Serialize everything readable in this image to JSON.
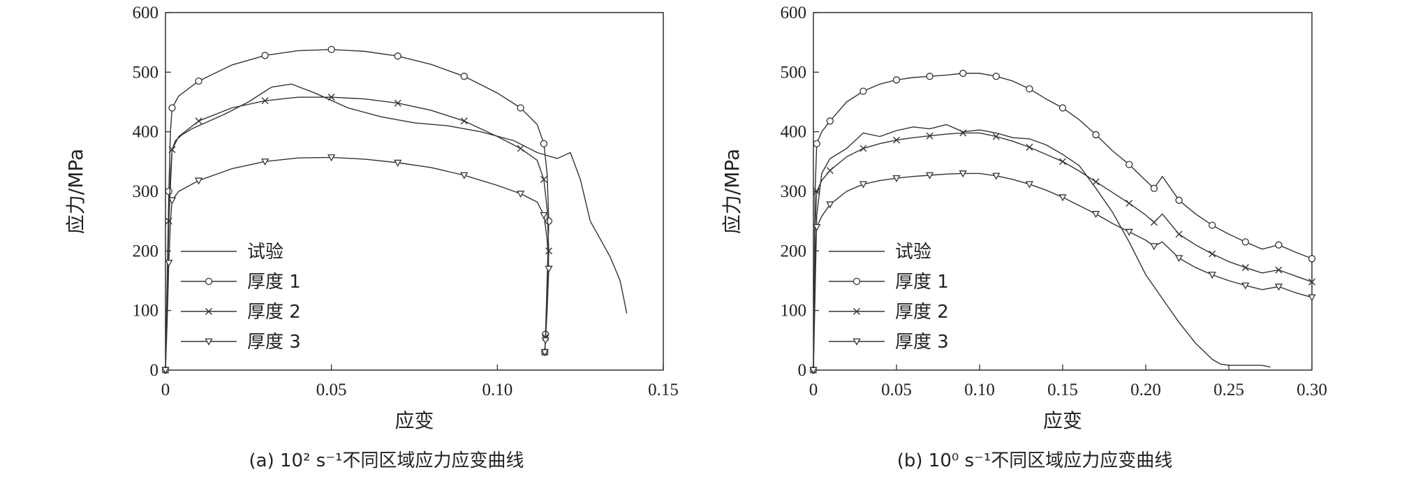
{
  "chart_data": [
    {
      "type": "line",
      "caption": "(a) 10² s⁻¹不同区域应力应变曲线",
      "xlabel": "应变",
      "ylabel": "应力/MPa",
      "xlim": [
        0,
        0.15
      ],
      "ylim": [
        0,
        600
      ],
      "x_ticks": [
        "0",
        "0.05",
        "0.10",
        "0.15"
      ],
      "y_ticks": [
        "0",
        "100",
        "200",
        "300",
        "400",
        "500",
        "600"
      ],
      "legend_position": "bottom-left",
      "series": [
        {
          "name": "试验",
          "marker": "none",
          "x": [
            0,
            0.001,
            0.002,
            0.003,
            0.005,
            0.008,
            0.012,
            0.018,
            0.025,
            0.032,
            0.038,
            0.045,
            0.055,
            0.065,
            0.075,
            0.085,
            0.095,
            0.105,
            0.112,
            0.118,
            0.122,
            0.125,
            0.128,
            0.131,
            0.134,
            0.137,
            0.139
          ],
          "y": [
            0,
            250,
            370,
            385,
            395,
            405,
            415,
            430,
            450,
            475,
            480,
            465,
            440,
            425,
            415,
            410,
            400,
            385,
            365,
            355,
            365,
            320,
            250,
            220,
            190,
            150,
            95
          ]
        },
        {
          "name": "厚度 1",
          "marker": "circle",
          "x": [
            0,
            0.0005,
            0.001,
            0.0015,
            0.002,
            0.004,
            0.01,
            0.02,
            0.03,
            0.04,
            0.05,
            0.06,
            0.07,
            0.08,
            0.09,
            0.1,
            0.107,
            0.112,
            0.114,
            0.115,
            0.1155,
            0.115,
            0.1145,
            0.1143
          ],
          "y": [
            0,
            150,
            300,
            400,
            440,
            460,
            485,
            512,
            528,
            536,
            538,
            535,
            527,
            513,
            493,
            465,
            440,
            412,
            380,
            330,
            250,
            150,
            60,
            30
          ]
        },
        {
          "name": "厚度 2",
          "marker": "x",
          "x": [
            0,
            0.0005,
            0.001,
            0.0015,
            0.002,
            0.004,
            0.01,
            0.02,
            0.03,
            0.04,
            0.05,
            0.06,
            0.07,
            0.08,
            0.09,
            0.1,
            0.107,
            0.112,
            0.114,
            0.115,
            0.1155,
            0.115,
            0.1145,
            0.1143
          ],
          "y": [
            0,
            120,
            250,
            330,
            370,
            392,
            418,
            440,
            452,
            458,
            458,
            455,
            448,
            436,
            418,
            392,
            372,
            352,
            320,
            270,
            200,
            120,
            55,
            30
          ]
        },
        {
          "name": "厚度 3",
          "marker": "triangle-down",
          "x": [
            0,
            0.0005,
            0.001,
            0.0015,
            0.002,
            0.004,
            0.01,
            0.02,
            0.03,
            0.04,
            0.05,
            0.06,
            0.07,
            0.08,
            0.09,
            0.1,
            0.107,
            0.112,
            0.114,
            0.115,
            0.1155,
            0.115,
            0.1145,
            0.1143
          ],
          "y": [
            0,
            80,
            180,
            250,
            285,
            300,
            318,
            338,
            350,
            356,
            357,
            354,
            348,
            340,
            327,
            310,
            296,
            282,
            260,
            220,
            170,
            100,
            50,
            30
          ]
        }
      ]
    },
    {
      "type": "line",
      "caption": "(b) 10⁰ s⁻¹不同区域应力应变曲线",
      "xlabel": "应变",
      "ylabel": "应力/MPa",
      "xlim": [
        0,
        0.3
      ],
      "ylim": [
        0,
        600
      ],
      "x_ticks": [
        "0",
        "0.05",
        "0.10",
        "0.15",
        "0.20",
        "0.25",
        "0.30"
      ],
      "y_ticks": [
        "0",
        "100",
        "200",
        "300",
        "400",
        "500",
        "600"
      ],
      "legend_position": "bottom-left",
      "series": [
        {
          "name": "试验",
          "marker": "none",
          "x": [
            0,
            0.002,
            0.005,
            0.01,
            0.02,
            0.03,
            0.04,
            0.05,
            0.06,
            0.07,
            0.08,
            0.09,
            0.1,
            0.11,
            0.12,
            0.13,
            0.14,
            0.15,
            0.16,
            0.17,
            0.18,
            0.19,
            0.2,
            0.21,
            0.22,
            0.23,
            0.24,
            0.245,
            0.25,
            0.26,
            0.27,
            0.275
          ],
          "y": [
            0,
            260,
            330,
            355,
            372,
            398,
            392,
            402,
            408,
            405,
            412,
            400,
            403,
            398,
            390,
            388,
            378,
            362,
            343,
            305,
            265,
            215,
            160,
            120,
            80,
            45,
            18,
            10,
            8,
            8,
            8,
            5
          ]
        },
        {
          "name": "厚度 1",
          "marker": "circle",
          "x": [
            0,
            0.001,
            0.002,
            0.005,
            0.01,
            0.02,
            0.03,
            0.04,
            0.05,
            0.06,
            0.07,
            0.08,
            0.09,
            0.1,
            0.11,
            0.12,
            0.13,
            0.14,
            0.15,
            0.16,
            0.17,
            0.18,
            0.19,
            0.2,
            0.205,
            0.21,
            0.22,
            0.23,
            0.24,
            0.25,
            0.26,
            0.27,
            0.28,
            0.29,
            0.3
          ],
          "y": [
            0,
            300,
            380,
            400,
            418,
            450,
            468,
            480,
            487,
            491,
            493,
            495,
            498,
            498,
            493,
            485,
            472,
            455,
            440,
            420,
            395,
            368,
            345,
            318,
            305,
            325,
            285,
            262,
            243,
            228,
            215,
            203,
            210,
            198,
            187
          ]
        },
        {
          "name": "厚度 2",
          "marker": "x",
          "x": [
            0,
            0.001,
            0.002,
            0.005,
            0.01,
            0.02,
            0.03,
            0.04,
            0.05,
            0.06,
            0.07,
            0.08,
            0.09,
            0.1,
            0.11,
            0.12,
            0.13,
            0.14,
            0.15,
            0.16,
            0.17,
            0.18,
            0.19,
            0.2,
            0.205,
            0.21,
            0.22,
            0.23,
            0.24,
            0.25,
            0.26,
            0.27,
            0.28,
            0.29,
            0.3
          ],
          "y": [
            0,
            240,
            300,
            318,
            335,
            358,
            372,
            380,
            386,
            390,
            393,
            396,
            398,
            398,
            392,
            384,
            374,
            362,
            350,
            334,
            316,
            298,
            280,
            260,
            248,
            262,
            228,
            210,
            195,
            182,
            172,
            163,
            168,
            158,
            148
          ]
        },
        {
          "name": "厚度 3",
          "marker": "triangle-down",
          "x": [
            0,
            0.001,
            0.002,
            0.005,
            0.01,
            0.02,
            0.03,
            0.04,
            0.05,
            0.06,
            0.07,
            0.08,
            0.09,
            0.1,
            0.11,
            0.12,
            0.13,
            0.14,
            0.15,
            0.16,
            0.17,
            0.18,
            0.19,
            0.2,
            0.205,
            0.21,
            0.22,
            0.23,
            0.24,
            0.25,
            0.26,
            0.27,
            0.28,
            0.29,
            0.3
          ],
          "y": [
            0,
            190,
            240,
            258,
            278,
            300,
            312,
            318,
            322,
            325,
            327,
            329,
            330,
            330,
            326,
            320,
            312,
            302,
            290,
            276,
            262,
            246,
            232,
            218,
            208,
            215,
            188,
            172,
            160,
            150,
            142,
            135,
            140,
            130,
            122
          ]
        }
      ]
    }
  ]
}
